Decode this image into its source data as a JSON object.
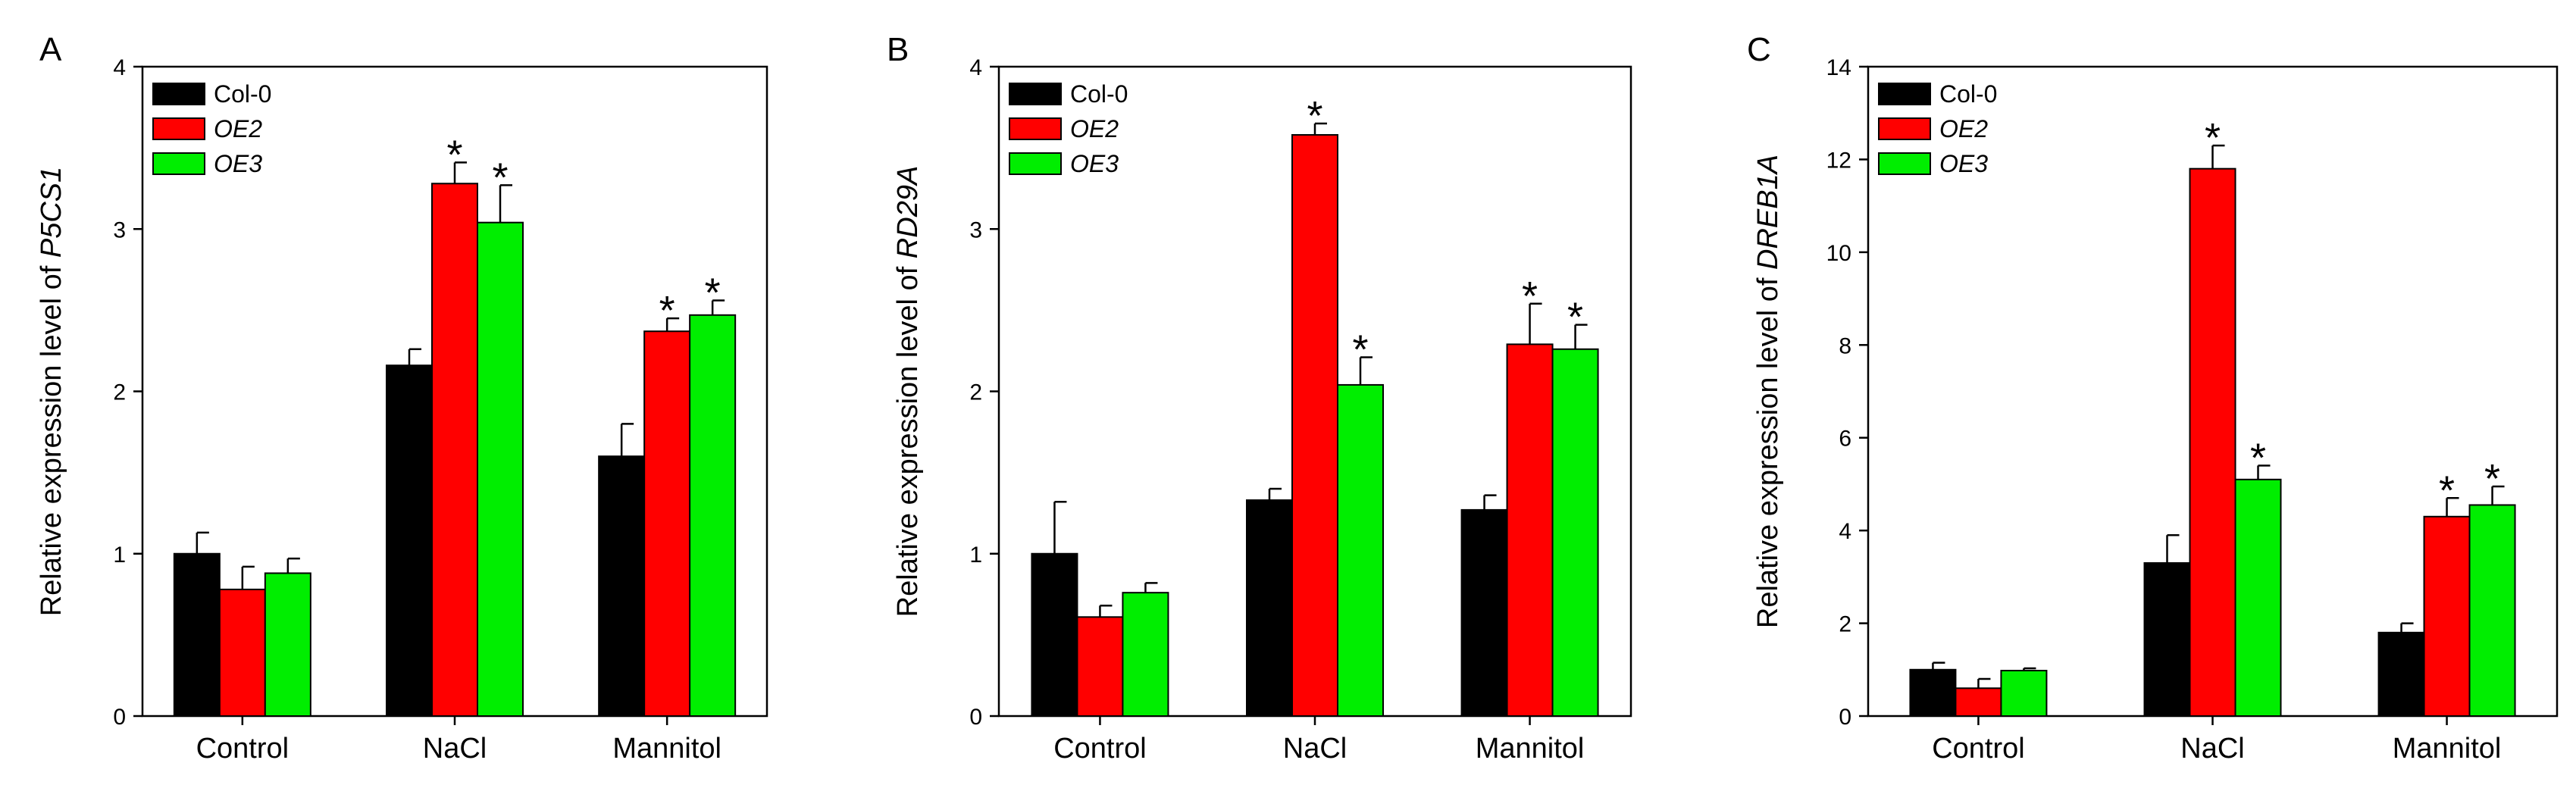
{
  "colors": {
    "Col-0": "#000000",
    "OE2": "#ff0000",
    "OE3": "#00ee00"
  },
  "chart_data": [
    {
      "type": "bar",
      "panel": "A",
      "categories": [
        "Control",
        "NaCl",
        "Mannitol"
      ],
      "ylabel_prefix": "Relative expression level of",
      "ylabel_gene": "P5CS1",
      "ylim": [
        0,
        4
      ],
      "yticks": [
        0,
        1,
        2,
        3,
        4
      ],
      "legend_position": "top-left",
      "series": [
        {
          "name": "Col-0",
          "values": [
            1.0,
            2.16,
            1.6
          ],
          "errors": [
            0.13,
            0.1,
            0.2
          ],
          "significant": [
            false,
            false,
            false
          ]
        },
        {
          "name": "OE2",
          "values": [
            0.78,
            3.28,
            2.37
          ],
          "errors": [
            0.14,
            0.13,
            0.08
          ],
          "significant": [
            false,
            true,
            true
          ]
        },
        {
          "name": "OE3",
          "values": [
            0.88,
            3.04,
            2.47
          ],
          "errors": [
            0.09,
            0.23,
            0.09
          ],
          "significant": [
            false,
            true,
            true
          ]
        }
      ]
    },
    {
      "type": "bar",
      "panel": "B",
      "categories": [
        "Control",
        "NaCl",
        "Mannitol"
      ],
      "ylabel_prefix": "Relative expression level of",
      "ylabel_gene": "RD29A",
      "ylim": [
        0,
        4
      ],
      "yticks": [
        0,
        1,
        2,
        3,
        4
      ],
      "legend_position": "top-left",
      "series": [
        {
          "name": "Col-0",
          "values": [
            1.0,
            1.33,
            1.27
          ],
          "errors": [
            0.32,
            0.07,
            0.09
          ],
          "significant": [
            false,
            false,
            false
          ]
        },
        {
          "name": "OE2",
          "values": [
            0.61,
            3.58,
            2.29
          ],
          "errors": [
            0.07,
            0.07,
            0.25
          ],
          "significant": [
            false,
            true,
            true
          ]
        },
        {
          "name": "OE3",
          "values": [
            0.76,
            2.04,
            2.26
          ],
          "errors": [
            0.06,
            0.17,
            0.15
          ],
          "significant": [
            false,
            true,
            true
          ]
        }
      ]
    },
    {
      "type": "bar",
      "panel": "C",
      "categories": [
        "Control",
        "NaCl",
        "Mannitol"
      ],
      "ylabel_prefix": "Relative expression level of",
      "ylabel_gene": "DREB1A",
      "ylim": [
        0,
        14
      ],
      "yticks": [
        0,
        2,
        4,
        6,
        8,
        10,
        12,
        14
      ],
      "legend_position": "top-left",
      "series": [
        {
          "name": "Col-0",
          "values": [
            1.0,
            3.3,
            1.8
          ],
          "errors": [
            0.15,
            0.6,
            0.2
          ],
          "significant": [
            false,
            false,
            false
          ]
        },
        {
          "name": "OE2",
          "values": [
            0.6,
            11.8,
            4.3
          ],
          "errors": [
            0.2,
            0.5,
            0.4
          ],
          "significant": [
            false,
            true,
            true
          ]
        },
        {
          "name": "OE3",
          "values": [
            0.98,
            5.1,
            4.55
          ],
          "errors": [
            0.05,
            0.3,
            0.4
          ],
          "significant": [
            false,
            true,
            true
          ]
        }
      ]
    }
  ]
}
